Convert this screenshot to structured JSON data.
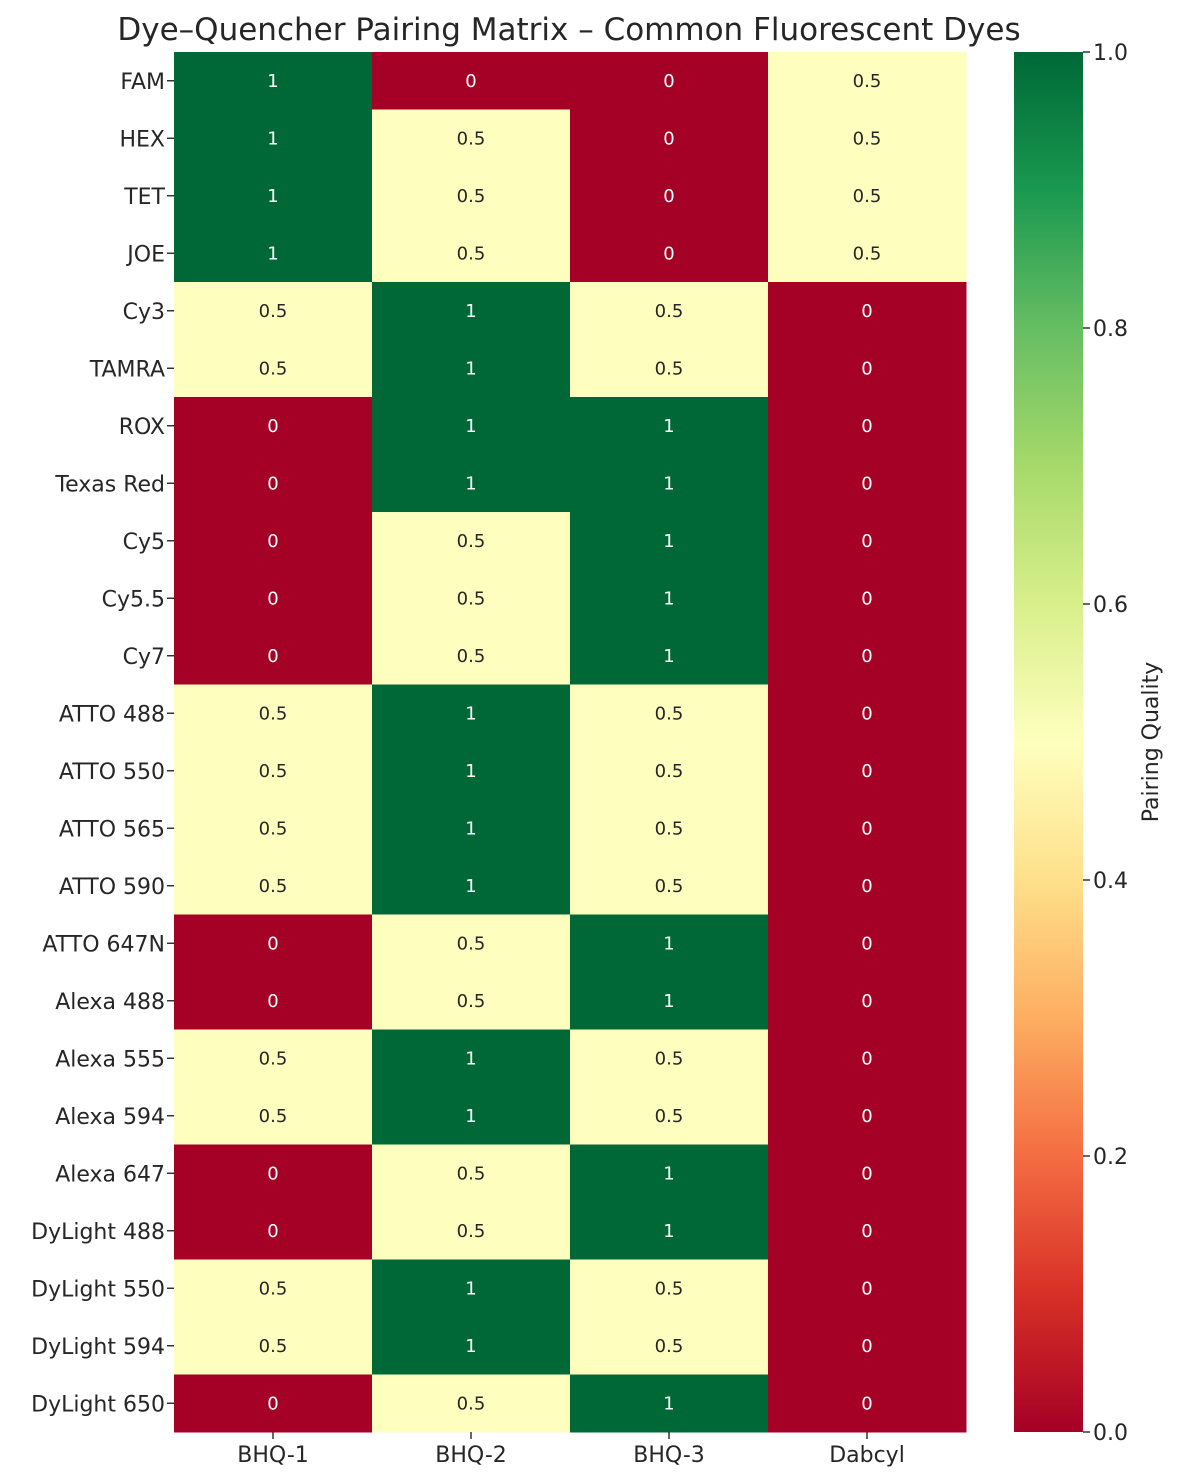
{
  "chart_data": {
    "type": "heatmap",
    "title": "Dye–Quencher Pairing Matrix – Common Fluorescent Dyes",
    "columns": [
      "BHQ-1",
      "BHQ-2",
      "BHQ-3",
      "Dabcyl"
    ],
    "rows": [
      "FAM",
      "HEX",
      "TET",
      "JOE",
      "Cy3",
      "TAMRA",
      "ROX",
      "Texas Red",
      "Cy5",
      "Cy5.5",
      "Cy7",
      "ATTO 488",
      "ATTO 550",
      "ATTO 565",
      "ATTO 590",
      "ATTO 647N",
      "Alexa 488",
      "Alexa 555",
      "Alexa 594",
      "Alexa 647",
      "DyLight 488",
      "DyLight 550",
      "DyLight 594",
      "DyLight 650"
    ],
    "values": [
      [
        1,
        0,
        0,
        0.5
      ],
      [
        1,
        0.5,
        0,
        0.5
      ],
      [
        1,
        0.5,
        0,
        0.5
      ],
      [
        1,
        0.5,
        0,
        0.5
      ],
      [
        0.5,
        1,
        0.5,
        0
      ],
      [
        0.5,
        1,
        0.5,
        0
      ],
      [
        0,
        1,
        1,
        0
      ],
      [
        0,
        1,
        1,
        0
      ],
      [
        0,
        0.5,
        1,
        0
      ],
      [
        0,
        0.5,
        1,
        0
      ],
      [
        0,
        0.5,
        1,
        0
      ],
      [
        0.5,
        1,
        0.5,
        0
      ],
      [
        0.5,
        1,
        0.5,
        0
      ],
      [
        0.5,
        1,
        0.5,
        0
      ],
      [
        0.5,
        1,
        0.5,
        0
      ],
      [
        0,
        0.5,
        1,
        0
      ],
      [
        0,
        0.5,
        1,
        0
      ],
      [
        0.5,
        1,
        0.5,
        0
      ],
      [
        0.5,
        1,
        0.5,
        0
      ],
      [
        0,
        0.5,
        1,
        0
      ],
      [
        0,
        0.5,
        1,
        0
      ],
      [
        0.5,
        1,
        0.5,
        0
      ],
      [
        0.5,
        1,
        0.5,
        0
      ],
      [
        0,
        0.5,
        1,
        0
      ]
    ],
    "value_labels": {
      "0": "0",
      "0.5": "0.5",
      "1": "1"
    },
    "colorbar": {
      "label": "Pairing Quality",
      "range": [
        0,
        1
      ],
      "ticks": [
        0.0,
        0.2,
        0.4,
        0.6,
        0.8,
        1.0
      ],
      "tick_labels": [
        "0.0",
        "0.2",
        "0.4",
        "0.6",
        "0.8",
        "1.0"
      ],
      "colormap": "RdYlGn",
      "colors": {
        "low": "#a50026",
        "mid": "#feffbe",
        "high": "#006837"
      }
    }
  }
}
